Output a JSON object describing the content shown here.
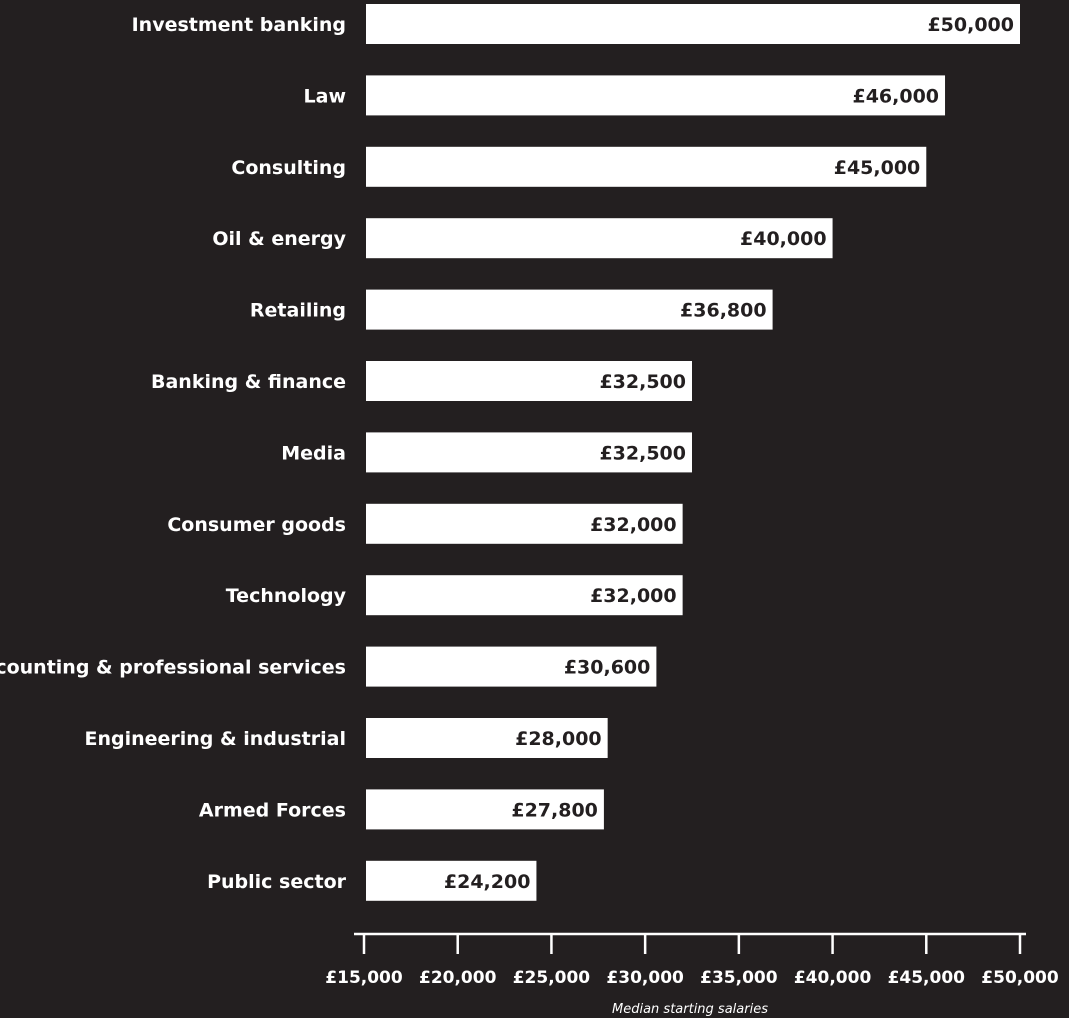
{
  "colors": {
    "background": "#231f20",
    "bar": "#ffffff",
    "value_text": "#231f20",
    "label_text": "#ffffff"
  },
  "chart_data": {
    "type": "bar",
    "orientation": "horizontal",
    "categories": [
      "Investment banking",
      "Law",
      "Consulting",
      "Oil & energy",
      "Retailing",
      "Banking & finance",
      "Media",
      "Consumer goods",
      "Technology",
      "Accounting & professional services",
      "Engineering & industrial",
      "Armed Forces",
      "Public sector"
    ],
    "values": [
      50000,
      46000,
      45000,
      40000,
      36800,
      32500,
      32500,
      32000,
      32000,
      30600,
      28000,
      27800,
      24200
    ],
    "value_labels": [
      "£50,000",
      "£46,000",
      "£45,000",
      "£40,000",
      "£36,800",
      "£32,500",
      "£32,500",
      "£32,000",
      "£32,000",
      "£30,600",
      "£28,000",
      "£27,800",
      "£24,200"
    ],
    "xlim": [
      15000,
      50000
    ],
    "xticks": [
      15000,
      20000,
      25000,
      30000,
      35000,
      40000,
      45000,
      50000
    ],
    "xtick_labels": [
      "£15,000",
      "£20,000",
      "£25,000",
      "£30,000",
      "£35,000",
      "£40,000",
      "£45,000",
      "£50,000"
    ],
    "xlabel": "Median starting salaries",
    "title": "",
    "ylabel": "",
    "grid": false
  }
}
